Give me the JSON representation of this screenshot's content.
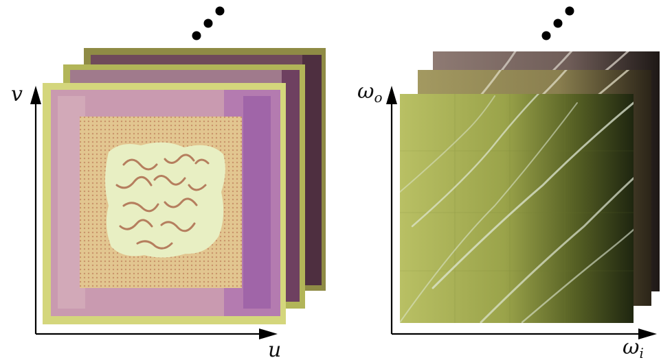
{
  "left_panel": {
    "x_axis_label": "u",
    "y_axis_label": "v",
    "layer_count": 3,
    "colors": {
      "base_frame": "#d4d67c",
      "pink_border": "#c99ab0",
      "purple_edge": "#a065a8",
      "woven_center": "#e2c690",
      "weave_dots": "#c9936a",
      "pattern_bg": "#e8efc3",
      "pattern_ink": "#b57e5e",
      "back_layer_1": "#a6a64d",
      "back_layer_2": "#7d7a3c",
      "dark_fabric": "#5e3a4e"
    }
  },
  "right_panel": {
    "x_axis_symbol": "ω",
    "x_axis_subscript": "i",
    "y_axis_symbol": "ω",
    "y_axis_subscript": "o",
    "layer_count": 3,
    "colors": {
      "light_green": "#b7be5c",
      "mid_green": "#8e9836",
      "dark_green": "#2f3a16",
      "back_layer_1": "#98905b",
      "back_layer_2": "#7f6c66",
      "streak": "#d9e2cf"
    }
  },
  "ellipsis": "…"
}
